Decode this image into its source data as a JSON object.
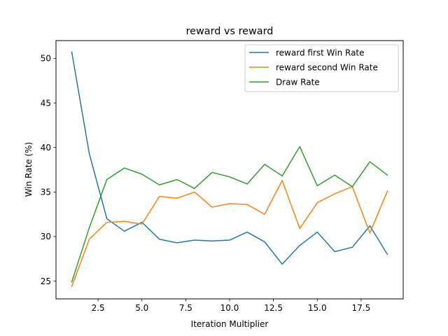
{
  "chart_data": {
    "type": "line",
    "title": "reward vs reward",
    "xlabel": "Iteration Multiplier",
    "ylabel": "Win Rate (%)",
    "xlim": [
      0.1,
      19.9
    ],
    "ylim": [
      23.0,
      52.0
    ],
    "x_ticks": [
      2.5,
      5.0,
      7.5,
      10.0,
      12.5,
      15.0,
      17.5
    ],
    "x_tick_labels": [
      "2.5",
      "5.0",
      "7.5",
      "10.0",
      "12.5",
      "15.0",
      "17.5"
    ],
    "y_ticks": [
      25,
      30,
      35,
      40,
      45,
      50
    ],
    "y_tick_labels": [
      "25",
      "30",
      "35",
      "40",
      "45",
      "50"
    ],
    "x": [
      1,
      2,
      3,
      4,
      5,
      6,
      7,
      8,
      9,
      10,
      11,
      12,
      13,
      14,
      15,
      16,
      17,
      18,
      19
    ],
    "grid": false,
    "legend_position": "top-right",
    "series": [
      {
        "name": "reward first Win Rate",
        "color": "#1f77b4",
        "values": [
          50.7,
          39.3,
          32.0,
          30.6,
          31.6,
          29.7,
          29.3,
          29.6,
          29.5,
          29.6,
          30.5,
          29.4,
          26.9,
          29.0,
          30.5,
          28.3,
          28.8,
          31.2,
          28.0
        ]
      },
      {
        "name": "reward second Win Rate",
        "color": "#ff7f0e",
        "values": [
          24.4,
          29.7,
          31.6,
          31.7,
          31.4,
          34.5,
          34.3,
          35.0,
          33.3,
          33.7,
          33.6,
          32.5,
          36.3,
          30.9,
          33.8,
          34.8,
          35.6,
          30.4,
          35.1
        ]
      },
      {
        "name": "Draw Rate",
        "color": "#2ca02c",
        "values": [
          24.9,
          31.0,
          36.4,
          37.7,
          37.0,
          35.8,
          36.4,
          35.4,
          37.2,
          36.7,
          35.9,
          38.1,
          36.8,
          40.1,
          35.7,
          36.9,
          35.6,
          38.4,
          36.9
        ]
      }
    ]
  }
}
